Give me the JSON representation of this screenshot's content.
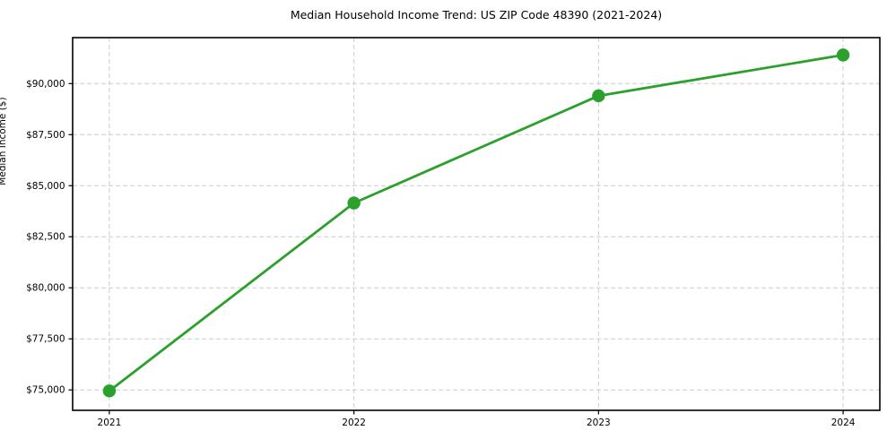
{
  "chart_data": {
    "type": "line",
    "title": "Median Household Income Trend: US ZIP Code 48390 (2021-2024)",
    "xlabel": "",
    "ylabel": "Median Income ($)",
    "x": [
      2021,
      2022,
      2023,
      2024
    ],
    "series": [
      {
        "name": "Median Household Income",
        "color": "#2ca02c",
        "values": [
          74950,
          84150,
          89400,
          91400
        ]
      }
    ],
    "xticks": [
      2021,
      2022,
      2023,
      2024
    ],
    "xtick_labels": [
      "2021",
      "2022",
      "2023",
      "2024"
    ],
    "yticks": [
      75000,
      77500,
      80000,
      82500,
      85000,
      87500,
      90000
    ],
    "ytick_labels": [
      "$75,000",
      "$77,500",
      "$80,000",
      "$82,500",
      "$85,000",
      "$87,500",
      "$90,000"
    ],
    "xlim": [
      2020.85,
      2024.15
    ],
    "ylim": [
      74000,
      92250
    ],
    "grid": true,
    "grid_color": "#cccccc",
    "spine_color": "#000000",
    "text_color": "#000000",
    "legend": "none",
    "background": "#ffffff"
  }
}
